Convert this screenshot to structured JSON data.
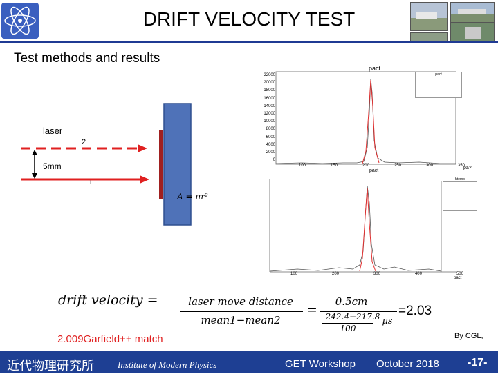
{
  "header": {
    "title": "DRIFT VELOCITY TEST",
    "subtitle": "Test methods and results",
    "title_rule_color": "#1f3a93"
  },
  "diagram": {
    "laser_label": "laser",
    "beam2_label": "2",
    "beam1_label": "1",
    "distance_label": "5mm",
    "area_formula": "A = πr²",
    "beam_color": "#e02020",
    "detector_color": "#4f72b8"
  },
  "histograms": {
    "top_title": "pact",
    "top_xlabel": "pact",
    "top_xlabel_right": "pa?",
    "top_stat_title": "pact",
    "top_y_ticks": [
      "22000",
      "20000",
      "18000",
      "16000",
      "14000",
      "12000",
      "10000",
      "8000",
      "6000",
      "4000",
      "2000",
      "0"
    ],
    "top_x_ticks": [
      "100",
      "150",
      "200",
      "250",
      "300",
      "350"
    ],
    "bottom_xlabel": "pact",
    "bottom_x_ticks": [
      "100",
      "200",
      "300",
      "400",
      "500"
    ],
    "bottom_stat_title": "htemp"
  },
  "formula": {
    "lhs": "drift velocity =",
    "num1": "laser move distance",
    "den1": "mean1−mean2",
    "eq2": "=",
    "num2": "0.5cm",
    "den2_num": "242.4−217.8",
    "den2_den": "100",
    "den2_unit": "μs",
    "result": "=2.03",
    "note": "2.009Garfield++ match",
    "note_color": "#e02020"
  },
  "credit": "By CGL,",
  "footer": {
    "institute_cn": "近代物理研究所",
    "institute_en": "Institute of Modern Physics",
    "workshop": "GET Workshop",
    "date": "October 2018",
    "page": "-17-",
    "bg_color": "#1e3f93"
  }
}
